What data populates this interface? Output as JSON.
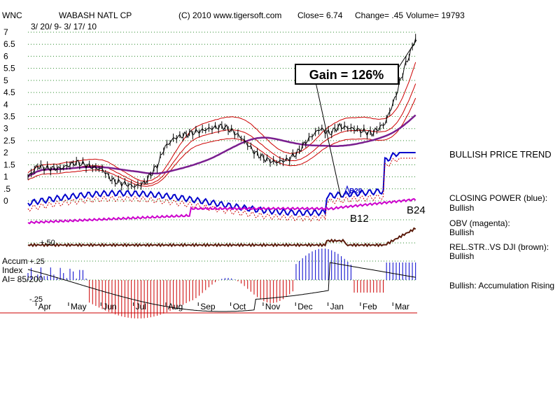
{
  "header": {
    "ticker": "WNC",
    "company": "WABASH NATL CP",
    "copyright": "(C) 2010 www.tigersoft.com",
    "close": "Close=  6.74",
    "change": "Change= .45",
    "volume": "Volume= 19793",
    "date_range": "3/ 20/ 9- 3/ 17/ 10"
  },
  "annotations": {
    "gain": "Gain = 126%",
    "b12": "B12",
    "b24": "B24",
    "b20": "B20",
    "plus50": "+.50",
    "accum_title": "Accum",
    "accum_index": "Index",
    "accum_ai": "AI= 85/200",
    "accum_plus25": "+.25",
    "accum_minus25": "-.25"
  },
  "right_panel": {
    "price_trend": "BULLISH PRICE TREND",
    "closing_power_title": "CLOSING POWER (blue):",
    "closing_power_value": "Bullish",
    "obv_title": "OBV (magenta):",
    "obv_value": "Bullish",
    "relstr_title": "REL.STR..VS DJI (brown):",
    "relstr_value": "Bullish",
    "accum_status": "Bullish: Accumulation Rising"
  },
  "colors": {
    "price": "#000000",
    "bands": "#cc0000",
    "long_ma": "#7a1f8f",
    "closing_power": "#0000cc",
    "obv": "#cc00cc",
    "relstr": "#5a1a0a",
    "accum_pos": "#0000cc",
    "accum_neg": "#cc0000",
    "grid": "#2a8a2a"
  },
  "chart_data": {
    "type": "line",
    "y_ticks": [
      "7",
      "6.5",
      "6",
      "5.5",
      "5",
      "4.5",
      "4",
      "3.5",
      "3",
      "2.5",
      "2",
      "1.5",
      "1",
      ".5",
      "0"
    ],
    "months": [
      "Apr",
      "May",
      "Jun",
      "Jul",
      "Aug",
      "Sep",
      "Oct",
      "Nov",
      "Dec",
      "Jan",
      "Feb",
      "Mar"
    ],
    "ylim": [
      0,
      7
    ],
    "series": [
      {
        "name": "Close",
        "x": [
          0,
          0.3,
          0.6,
          1.0,
          1.5,
          2.0,
          2.3,
          2.6,
          3.0,
          3.3,
          3.6,
          4.0,
          4.2,
          4.5,
          5.0,
          5.3,
          5.6,
          6.0,
          6.3,
          6.6,
          7.0,
          7.3,
          7.6,
          8.0,
          8.3,
          8.6,
          9.0,
          9.3,
          9.6,
          10.0,
          10.3,
          10.6,
          11.0,
          11.3,
          11.6,
          11.95
        ],
        "y": [
          1.0,
          1.45,
          1.35,
          1.35,
          1.6,
          1.4,
          1.3,
          0.85,
          0.7,
          0.6,
          0.75,
          1.5,
          2.2,
          2.6,
          2.8,
          2.9,
          3.0,
          3.1,
          2.9,
          2.6,
          2.0,
          1.75,
          1.6,
          1.7,
          2.0,
          2.5,
          3.0,
          2.8,
          3.1,
          3.0,
          2.9,
          2.8,
          3.2,
          4.2,
          5.5,
          6.74
        ]
      }
    ]
  }
}
